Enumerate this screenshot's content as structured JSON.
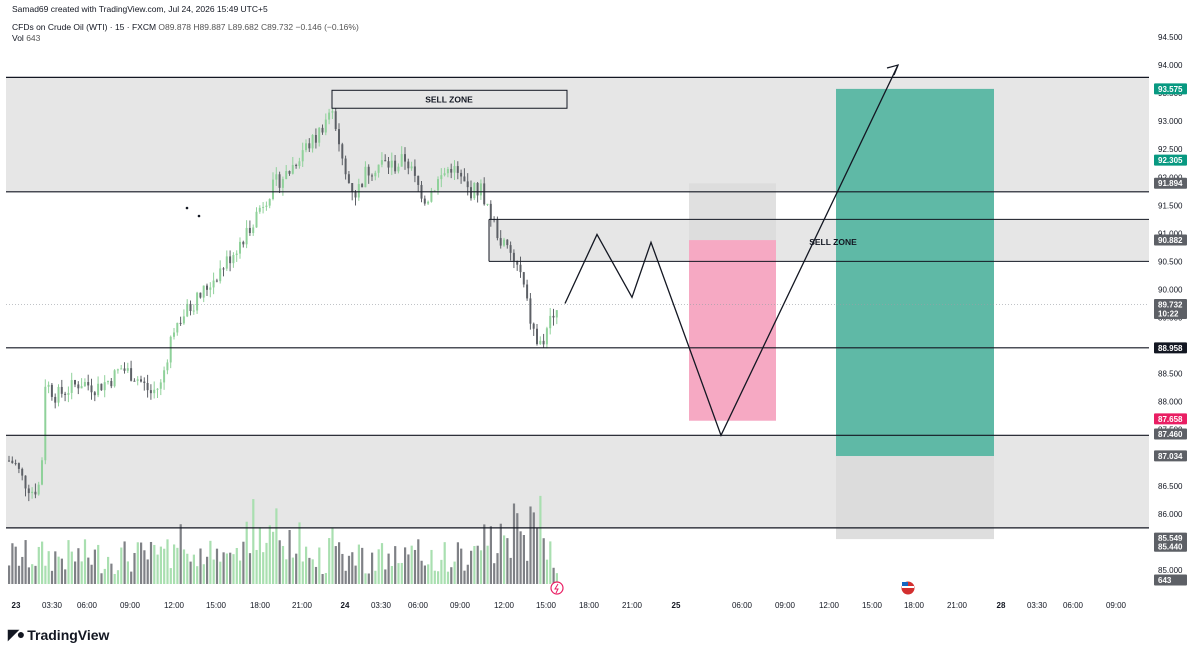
{
  "header": {
    "credit": "Samad69 created with TradingView.com, Jul 24, 2026 15:49 UTC+5",
    "symbol": "CFDs on Crude Oil (WTI) · 15 · FXCM",
    "ohlc": "O89.878 H89.887 L89.682 C89.732 −0.146 (−0.16%)",
    "vol_label": "Vol",
    "vol_value": "643"
  },
  "footer": {
    "brand": "TradingView",
    "logo_icon": "tradingview-logo-icon"
  },
  "colors": {
    "up": "#8fd19a",
    "up_vol": "#a9dfb0",
    "down": "#5d6066",
    "down_vol": "#7f8186",
    "zone": "#e6e6e6",
    "target": "#5fb9a6",
    "stop": "#f6a9c3",
    "tag_dark": "#5d6066",
    "tag_teal": "#089981",
    "tag_red": "#e91e63",
    "tag_black": "#131722"
  },
  "chart_data": {
    "type": "candlestick",
    "symbol": "CFDs on Crude Oil (WTI)",
    "interval": "15",
    "y_ticks": [
      "94.500",
      "94.000",
      "93.500",
      "93.000",
      "92.500",
      "92.000",
      "91.500",
      "91.000",
      "90.500",
      "90.000",
      "89.500",
      "89.000",
      "88.500",
      "88.000",
      "87.500",
      "87.000",
      "86.500",
      "86.000",
      "85.500",
      "85.000"
    ],
    "x_ticks": [
      "23",
      "03:30",
      "06:00",
      "09:00",
      "12:00",
      "15:00",
      "18:00",
      "21:00",
      "24",
      "03:30",
      "06:00",
      "09:00",
      "12:00",
      "15:00",
      "18:00",
      "21:00",
      "25",
      "06:00",
      "09:00",
      "12:00",
      "15:00",
      "18:00",
      "21:00",
      "28",
      "03:30",
      "06:00",
      "09:00"
    ],
    "horizontal_levels": [
      93.78,
      91.74,
      88.96,
      87.4,
      85.75
    ],
    "zones": [
      {
        "from": 85.75,
        "to": 87.4
      },
      {
        "from": 91.74,
        "to": 93.78
      },
      {
        "from": 90.5,
        "to": 91.25,
        "label": "SELL ZONE"
      }
    ],
    "sell_zone_box": {
      "label": "SELL ZONE",
      "from": 93.23,
      "to": 93.55
    },
    "price_tags": [
      {
        "value": "93.575",
        "style": "teal"
      },
      {
        "value": "92.305",
        "style": "teal"
      },
      {
        "value": "91.894",
        "style": "dark"
      },
      {
        "value": "90.882",
        "style": "dark"
      },
      {
        "value": "89.732",
        "style": "dark",
        "sub": "10:22"
      },
      {
        "value": "88.958",
        "style": "black"
      },
      {
        "value": "87.658",
        "style": "red"
      },
      {
        "value": "87.460",
        "style": "dark"
      },
      {
        "value": "87.034",
        "style": "dark"
      },
      {
        "value": "85.549",
        "style": "dark"
      },
      {
        "value": "85.440",
        "style": "dark"
      },
      {
        "value": "643",
        "style": "dark"
      }
    ],
    "short_position": {
      "entry": 90.88,
      "stop": 91.89,
      "target": 87.66
    },
    "long_position": {
      "entry": 87.03,
      "stop": 85.55,
      "target": 93.575
    },
    "projection_path": [
      89.75,
      90.98,
      89.86,
      90.84,
      87.4,
      94.0
    ],
    "last_price": 89.732,
    "last_volume": 643
  }
}
